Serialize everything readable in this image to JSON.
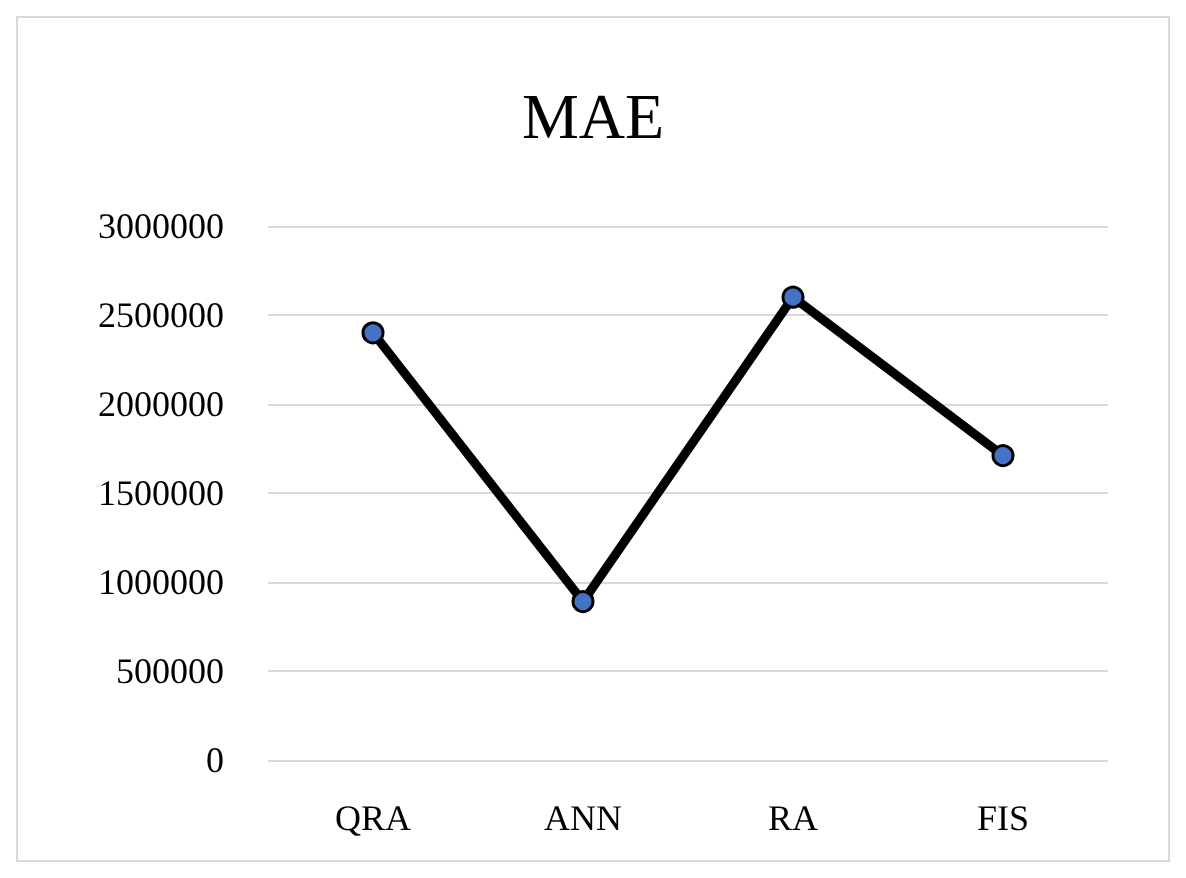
{
  "chart_data": {
    "type": "line",
    "title": "MAE",
    "categories": [
      "QRA",
      "ANN",
      "RA",
      "FIS"
    ],
    "series": [
      {
        "color": "#000000",
        "values": [
          2400000,
          890000,
          2600000,
          1710000
        ]
      }
    ],
    "marker": "circle",
    "ylim": [
      0,
      3000000
    ],
    "yticks": [
      0,
      500000,
      1000000,
      1500000,
      2000000,
      2500000,
      3000000
    ],
    "grid": "y"
  }
}
